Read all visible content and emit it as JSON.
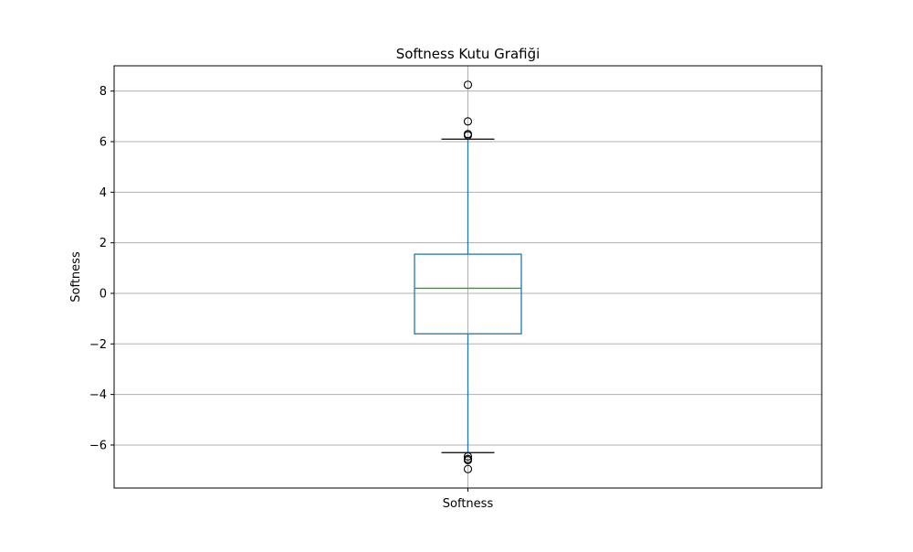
{
  "chart_data": {
    "type": "box",
    "title": "Softness Kutu Grafiği",
    "xlabel": "",
    "ylabel": "Softness",
    "categories": [
      "Softness"
    ],
    "ylim": [
      -7.7,
      9.0
    ],
    "yticks": [
      -6,
      -4,
      -2,
      0,
      2,
      4,
      6,
      8
    ],
    "grid": true,
    "series": [
      {
        "name": "Softness",
        "whisker_low": -6.3,
        "q1": -1.6,
        "median": 0.2,
        "q3": 1.55,
        "whisker_high": 6.1,
        "outliers": [
          8.25,
          6.8,
          6.3,
          6.25,
          -6.45,
          -6.55,
          -6.6,
          -6.95
        ]
      }
    ],
    "colors": {
      "box": "#1f77b4",
      "whisker": "#1f77b4",
      "median": "#2ca02c",
      "caps": "#000000",
      "outlier": "#000000",
      "grid": "#b0b0b0"
    }
  }
}
